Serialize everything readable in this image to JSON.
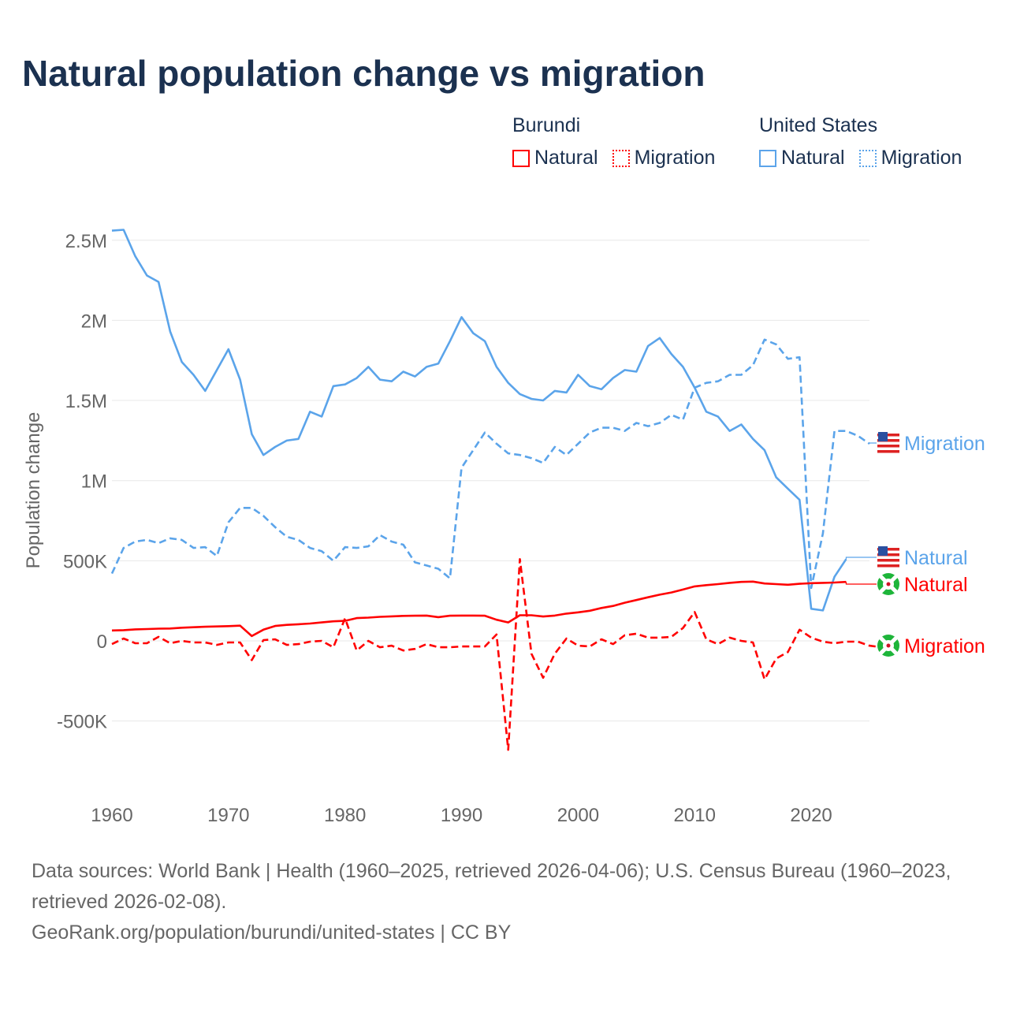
{
  "title": "Natural population change vs migration",
  "legend": {
    "groups": [
      {
        "name": "Burundi",
        "color": "#ff0000",
        "items": [
          "Natural",
          "Migration"
        ]
      },
      {
        "name": "United States",
        "color": "#5ba4ea",
        "items": [
          "Natural",
          "Migration"
        ]
      }
    ]
  },
  "footer": {
    "sources": "Data sources: World Bank | Health (1960–2025, retrieved 2026-04-06); U.S. Census Bureau (1960–2023, retrieved 2026-02-08).",
    "credit": "GeoRank.org/population/burundi/united-states | CC BY"
  },
  "chart_data": {
    "type": "line",
    "title": "Natural population change vs migration",
    "xlabel": "",
    "ylabel": "Population change",
    "xlim": [
      1960,
      2025
    ],
    "ylim": [
      -1000000,
      2750000
    ],
    "x_ticks": [
      1960,
      1970,
      1980,
      1990,
      2000,
      2010,
      2020
    ],
    "x_tick_labels": [
      "1960",
      "1970",
      "1980",
      "1990",
      "2000",
      "2010",
      "2020"
    ],
    "y_ticks": [
      -500000,
      0,
      500000,
      1000000,
      1500000,
      2000000,
      2500000
    ],
    "y_tick_labels": [
      "-500K",
      "0",
      "500K",
      "1M",
      "1.5M",
      "2M",
      "2.5M"
    ],
    "grid": true,
    "legend_position": "top-right",
    "series": [
      {
        "name": "United States Natural",
        "country": "United States",
        "label": "Natural",
        "color": "#5ba4ea",
        "dash": false,
        "start": 1960,
        "values": [
          2560000,
          2565000,
          2400000,
          2280000,
          2240000,
          1930000,
          1740000,
          1660000,
          1560000,
          1690000,
          1820000,
          1630000,
          1290000,
          1160000,
          1210000,
          1250000,
          1260000,
          1430000,
          1400000,
          1590000,
          1600000,
          1640000,
          1710000,
          1630000,
          1620000,
          1680000,
          1650000,
          1710000,
          1730000,
          1870000,
          2020000,
          1920000,
          1870000,
          1710000,
          1610000,
          1540000,
          1510000,
          1500000,
          1560000,
          1550000,
          1660000,
          1590000,
          1570000,
          1640000,
          1690000,
          1680000,
          1840000,
          1890000,
          1790000,
          1710000,
          1580000,
          1430000,
          1400000,
          1310000,
          1350000,
          1260000,
          1190000,
          1020000,
          950000,
          880000,
          200000,
          190000,
          400000,
          510000
        ]
      },
      {
        "name": "United States Migration",
        "country": "United States",
        "label": "Migration",
        "color": "#5ba4ea",
        "dash": true,
        "start": 1960,
        "values": [
          420000,
          580000,
          620000,
          630000,
          610000,
          640000,
          630000,
          580000,
          585000,
          530000,
          740000,
          830000,
          830000,
          780000,
          710000,
          650000,
          630000,
          580000,
          560000,
          500000,
          585000,
          580000,
          590000,
          660000,
          620000,
          600000,
          490000,
          470000,
          450000,
          390000,
          1080000,
          1190000,
          1300000,
          1230000,
          1170000,
          1160000,
          1140000,
          1110000,
          1210000,
          1160000,
          1230000,
          1300000,
          1330000,
          1330000,
          1310000,
          1360000,
          1340000,
          1360000,
          1410000,
          1380000,
          1580000,
          1610000,
          1620000,
          1660000,
          1660000,
          1720000,
          1880000,
          1850000,
          1760000,
          1770000,
          330000,
          670000,
          1310000,
          1310000,
          1280000,
          1230000
        ]
      },
      {
        "name": "Burundi Natural",
        "country": "Burundi",
        "label": "Natural",
        "color": "#ff0000",
        "dash": false,
        "start": 1960,
        "values": [
          65000,
          67000,
          72000,
          74000,
          76000,
          77000,
          82000,
          85000,
          88000,
          90000,
          92000,
          95000,
          30000,
          70000,
          93000,
          100000,
          104000,
          108000,
          115000,
          122000,
          125000,
          142000,
          145000,
          150000,
          153000,
          156000,
          157000,
          158000,
          148000,
          157000,
          158000,
          158000,
          157000,
          132000,
          115000,
          160000,
          160000,
          152000,
          158000,
          170000,
          178000,
          188000,
          205000,
          218000,
          238000,
          255000,
          272000,
          288000,
          302000,
          320000,
          340000,
          348000,
          354000,
          362000,
          368000,
          370000,
          358000,
          354000,
          350000,
          356000,
          360000,
          362000,
          364000,
          368000
        ]
      },
      {
        "name": "Burundi Migration",
        "country": "Burundi",
        "label": "Migration",
        "color": "#ff0000",
        "dash": true,
        "start": 1960,
        "values": [
          -20000,
          15000,
          -15000,
          -15000,
          25000,
          -15000,
          0,
          -10000,
          -10000,
          -25000,
          -10000,
          -10000,
          -120000,
          5000,
          10000,
          -25000,
          -20000,
          -5000,
          0,
          -40000,
          140000,
          -60000,
          0,
          -40000,
          -30000,
          -60000,
          -50000,
          -20000,
          -40000,
          -40000,
          -35000,
          -35000,
          -35000,
          40000,
          -680000,
          510000,
          -80000,
          -230000,
          -80000,
          15000,
          -30000,
          -35000,
          10000,
          -20000,
          35000,
          45000,
          20000,
          20000,
          25000,
          80000,
          180000,
          10000,
          -20000,
          20000,
          0,
          -10000,
          -240000,
          -110000,
          -70000,
          70000,
          20000,
          -5000,
          -15000,
          -5000,
          -5000,
          -30000,
          -40000
        ]
      }
    ],
    "end_labels": [
      {
        "text": "Migration",
        "country": "United States",
        "color": "#5ba4ea"
      },
      {
        "text": "Natural",
        "country": "United States",
        "color": "#5ba4ea"
      },
      {
        "text": "Natural",
        "country": "Burundi",
        "color": "#ff0000"
      },
      {
        "text": "Migration",
        "country": "Burundi",
        "color": "#ff0000"
      }
    ]
  }
}
